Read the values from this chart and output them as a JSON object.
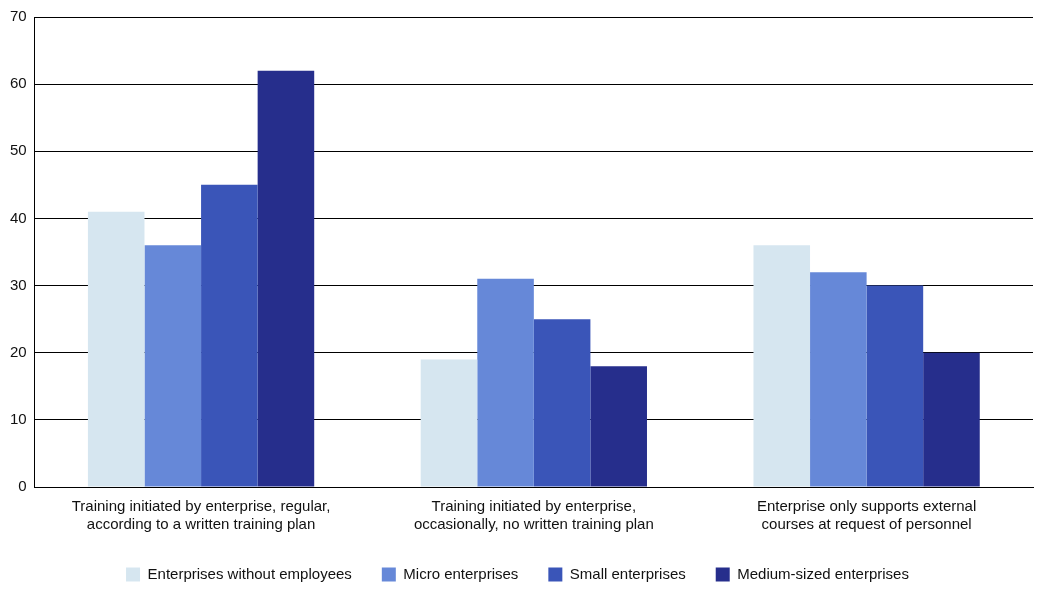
{
  "chart_data": {
    "type": "bar",
    "categories": [
      "Training initiated by enterprise, regular, according to a written training plan",
      "Training initiated by enterprise, occasionally, no written training plan",
      "Enterprise only supports external courses at request of personnel"
    ],
    "series": [
      {
        "name": "Enterprises without employees",
        "color": "#d6e6f0",
        "values": [
          41,
          19,
          36
        ]
      },
      {
        "name": "Micro enterprises",
        "color": "#6688d8",
        "values": [
          36,
          31,
          32
        ]
      },
      {
        "name": "Small enterprises",
        "color": "#3a55b8",
        "values": [
          45,
          25,
          30
        ]
      },
      {
        "name": "Medium-sized enterprises",
        "color": "#262e8c",
        "values": [
          62,
          18,
          20
        ]
      }
    ],
    "ylim": [
      0,
      70
    ],
    "yticks": [
      0,
      10,
      20,
      30,
      40,
      50,
      60,
      70
    ],
    "grid": "y",
    "legend": "bottom"
  }
}
